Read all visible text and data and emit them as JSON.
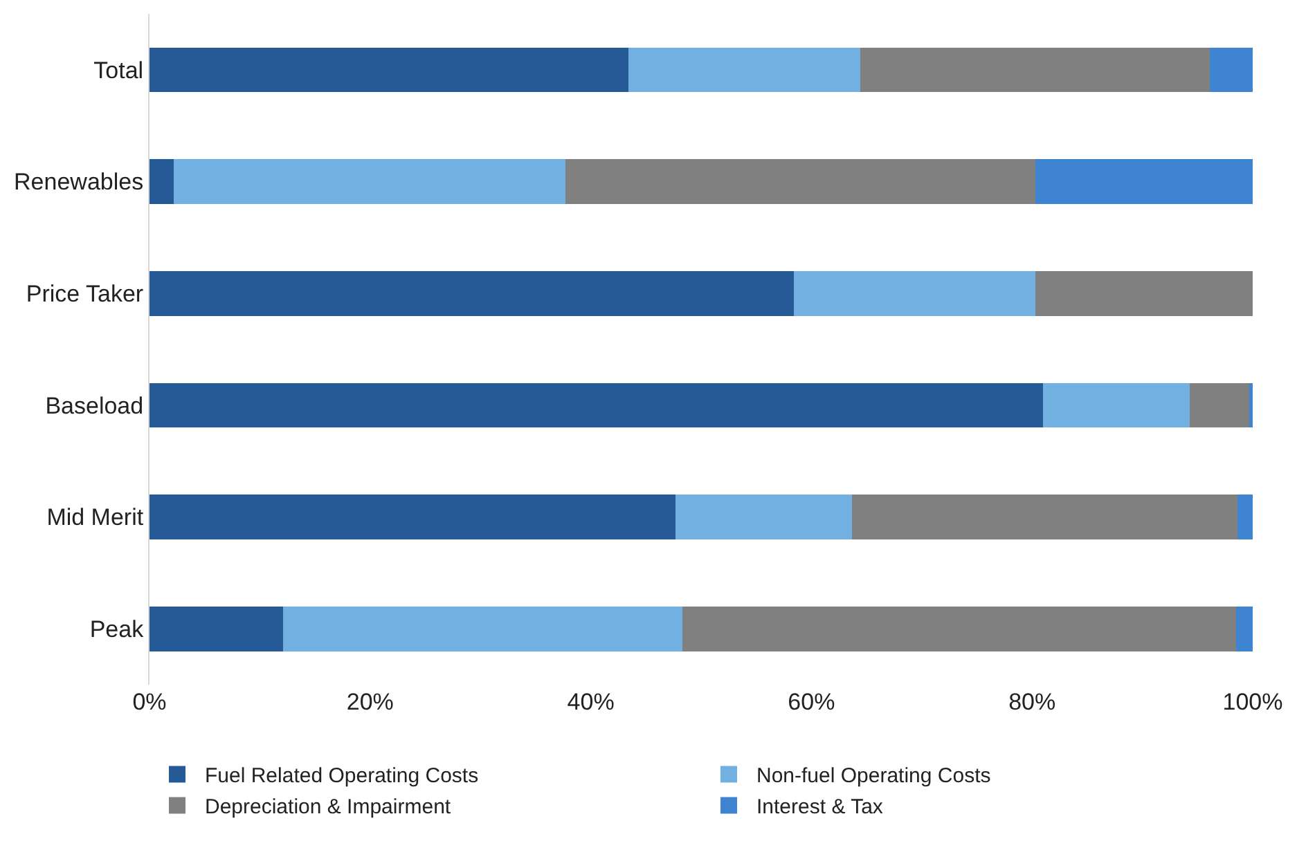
{
  "chart_data": {
    "type": "bar",
    "orientation": "horizontal",
    "stacked": true,
    "categories": [
      "Total",
      "Renewables",
      "Price Taker",
      "Baseload",
      "Mid Merit",
      "Peak"
    ],
    "series": [
      {
        "name": "Fuel Related Operating Costs",
        "color": "#255a96",
        "values": [
          43.4,
          2.2,
          58.4,
          81.0,
          47.7,
          12.1
        ]
      },
      {
        "name": "Non-fuel Operating Costs",
        "color": "#72b0e2",
        "values": [
          21.0,
          35.5,
          21.9,
          13.3,
          16.0,
          36.2
        ]
      },
      {
        "name": "Depreciation & Impairment",
        "color": "#808080",
        "values": [
          31.7,
          42.6,
          19.7,
          5.4,
          34.9,
          50.2
        ]
      },
      {
        "name": "Interest & Tax",
        "color": "#3f84d0",
        "values": [
          3.9,
          19.7,
          0,
          0.3,
          1.4,
          1.5
        ]
      }
    ],
    "xlim": [
      0,
      100
    ],
    "xticks": [
      {
        "value": 0,
        "label": "0%"
      },
      {
        "value": 20,
        "label": "20%"
      },
      {
        "value": 40,
        "label": "40%"
      },
      {
        "value": 60,
        "label": "60%"
      },
      {
        "value": 80,
        "label": "80%"
      },
      {
        "value": 100,
        "label": "100%"
      }
    ],
    "legend": "bottom"
  }
}
